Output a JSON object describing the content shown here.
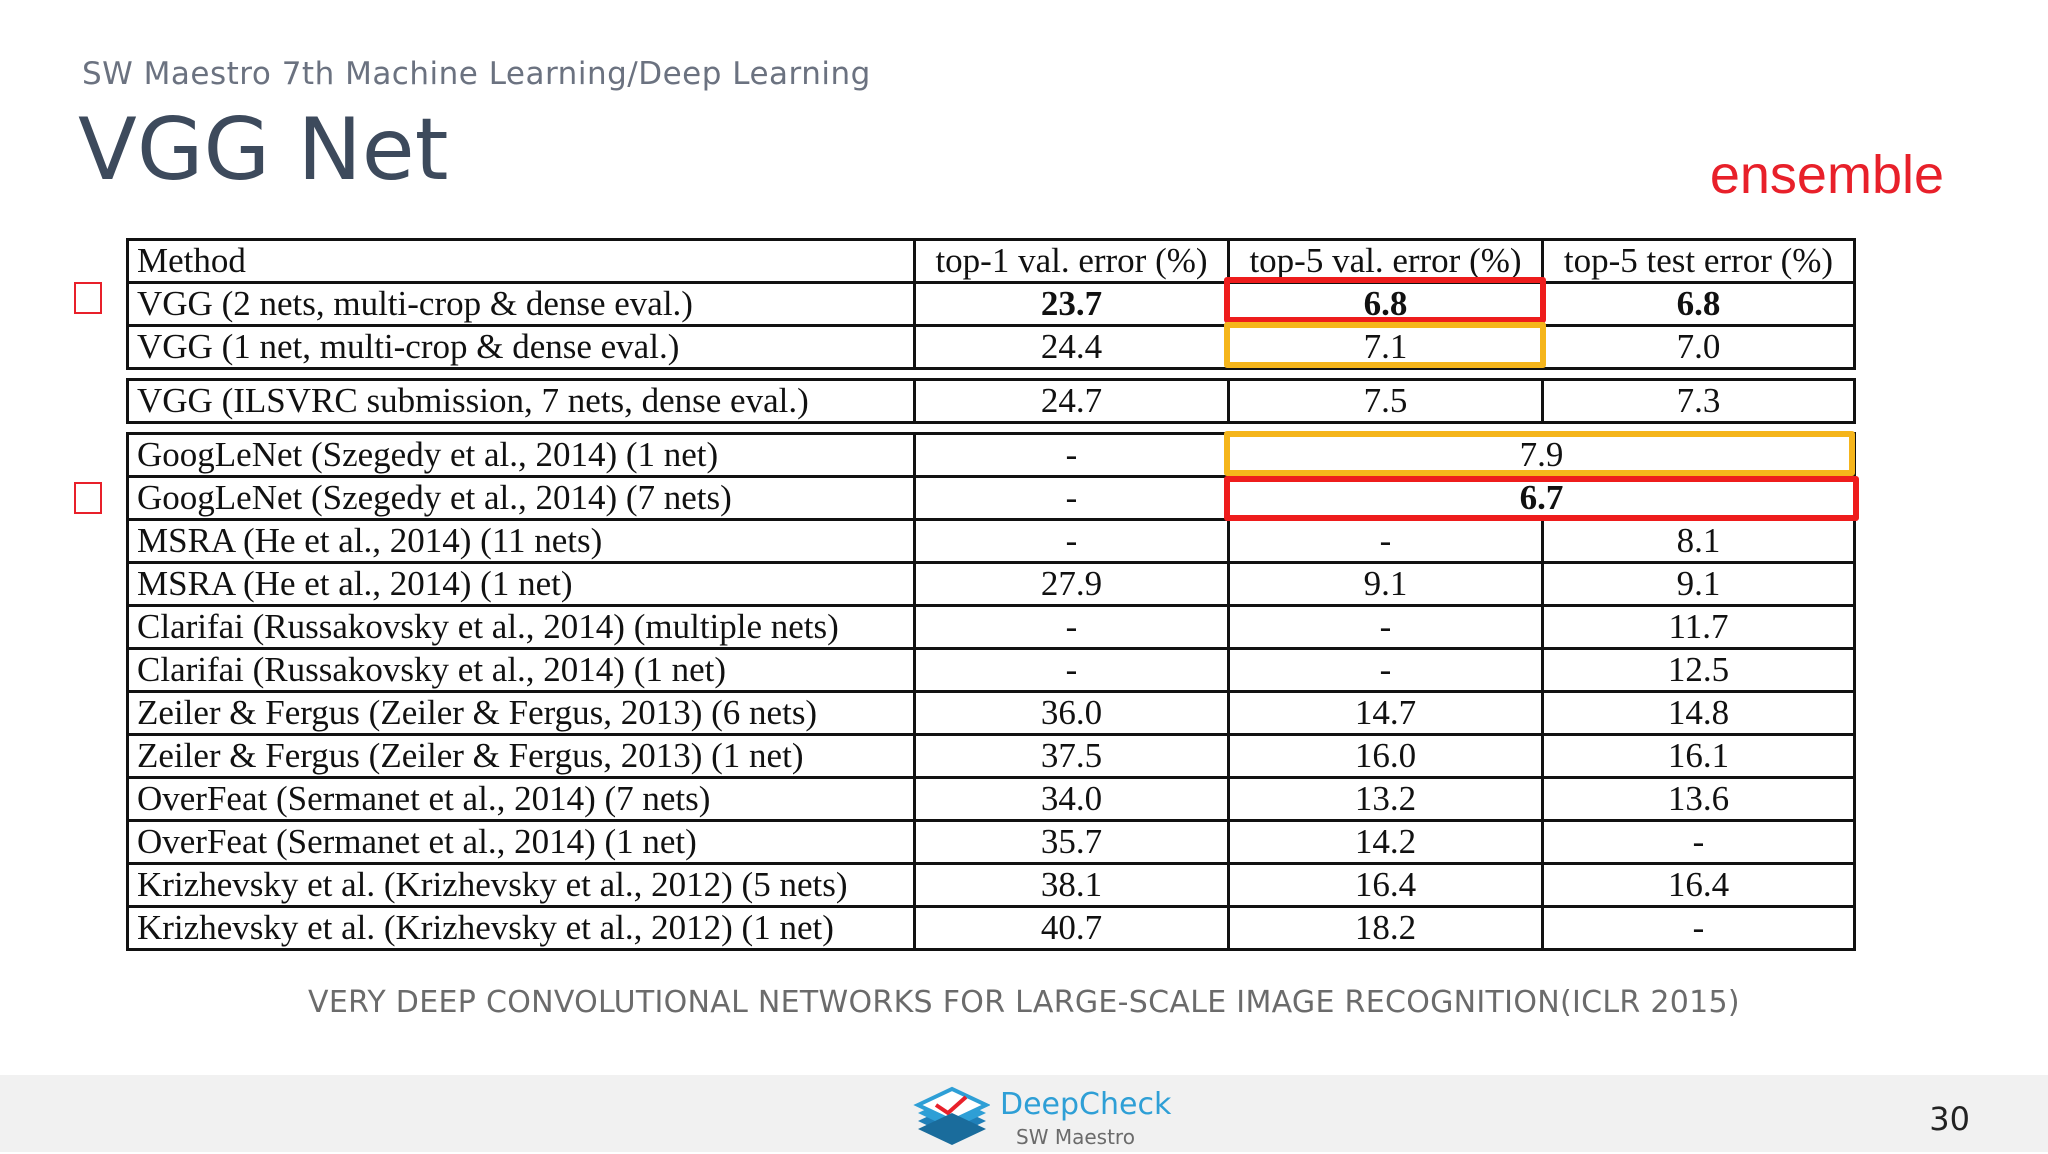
{
  "header": {
    "subtitle": "SW Maestro 7th Machine Learning/Deep Learning",
    "title": "VGG Net",
    "annotation": "ensemble"
  },
  "table": {
    "headers": [
      "Method",
      "top-1 val. error (%)",
      "top-5 val. error (%)",
      "top-5 test error (%)"
    ],
    "groups": [
      {
        "rows": [
          {
            "method": "VGG (2 nets, multi-crop & dense eval.)",
            "top1_val": "23.7",
            "top5_val": "6.8",
            "top5_test": "6.8"
          },
          {
            "method": "VGG (1 net, multi-crop & dense eval.)",
            "top1_val": "24.4",
            "top5_val": "7.1",
            "top5_test": "7.0"
          }
        ]
      },
      {
        "rows": [
          {
            "method": "VGG (ILSVRC submission, 7 nets, dense eval.)",
            "top1_val": "24.7",
            "top5_val": "7.5",
            "top5_test": "7.3"
          }
        ]
      },
      {
        "rows": [
          {
            "method": "GoogLeNet (Szegedy et al., 2014) (1 net)",
            "top1_val": "-",
            "top5_merged": "7.9"
          },
          {
            "method": "GoogLeNet (Szegedy et al., 2014) (7 nets)",
            "top1_val": "-",
            "top5_merged": "6.7"
          },
          {
            "method": "MSRA (He et al., 2014) (11 nets)",
            "top1_val": "-",
            "top5_val": "-",
            "top5_test": "8.1"
          },
          {
            "method": "MSRA (He et al., 2014) (1 net)",
            "top1_val": "27.9",
            "top5_val": "9.1",
            "top5_test": "9.1"
          },
          {
            "method": "Clarifai (Russakovsky et al., 2014) (multiple nets)",
            "top1_val": "-",
            "top5_val": "-",
            "top5_test": "11.7"
          },
          {
            "method": "Clarifai (Russakovsky et al., 2014) (1 net)",
            "top1_val": "-",
            "top5_val": "-",
            "top5_test": "12.5"
          },
          {
            "method": "Zeiler & Fergus (Zeiler & Fergus, 2013) (6 nets)",
            "top1_val": "36.0",
            "top5_val": "14.7",
            "top5_test": "14.8"
          },
          {
            "method": "Zeiler & Fergus (Zeiler & Fergus, 2013) (1 net)",
            "top1_val": "37.5",
            "top5_val": "16.0",
            "top5_test": "16.1"
          },
          {
            "method": "OverFeat (Sermanet et al., 2014) (7 nets)",
            "top1_val": "34.0",
            "top5_val": "13.2",
            "top5_test": "13.6"
          },
          {
            "method": "OverFeat (Sermanet et al., 2014) (1 net)",
            "top1_val": "35.7",
            "top5_val": "14.2",
            "top5_test": "-"
          },
          {
            "method": "Krizhevsky et al. (Krizhevsky et al., 2012) (5 nets)",
            "top1_val": "38.1",
            "top5_val": "16.4",
            "top5_test": "16.4"
          },
          {
            "method": "Krizhevsky et al. (Krizhevsky et al., 2012) (1 net)",
            "top1_val": "40.7",
            "top5_val": "18.2",
            "top5_test": "-"
          }
        ]
      }
    ]
  },
  "caption": "VERY DEEP CONVOLUTIONAL NETWORKS FOR LARGE-SCALE IMAGE RECOGNITION(ICLR 2015)",
  "footer": {
    "brand": "DeepCheck",
    "brand_sub": "SW Maestro",
    "page_number": "30"
  },
  "colors": {
    "highlight_red": "#ee1c1c",
    "highlight_orange": "#f5b51b",
    "title": "#3d4a5c",
    "annotation": "#e8202a",
    "brand": "#2e9fd6"
  }
}
